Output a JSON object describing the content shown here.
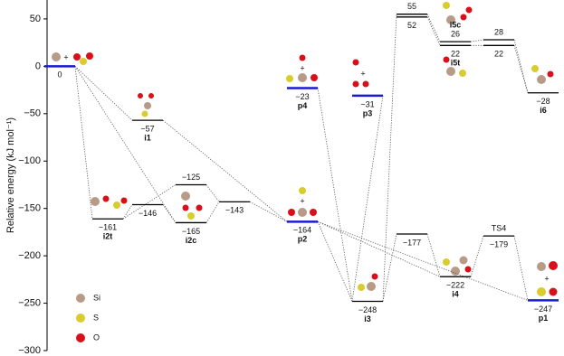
{
  "chart_data": {
    "type": "energy-levels",
    "y_label": "Relative energy (kJ mol⁻¹)",
    "ylim": [
      -300,
      69
    ],
    "yticks": [
      {
        "value": -300,
        "label": "−300"
      },
      {
        "value": -250,
        "label": "−250"
      },
      {
        "value": -200,
        "label": "−200"
      },
      {
        "value": -150,
        "label": "−150"
      },
      {
        "value": -100,
        "label": "−100"
      },
      {
        "value": -50,
        "label": "−50"
      },
      0,
      50
    ],
    "levels": [
      {
        "value": 0,
        "label": "0",
        "color": "#1a1ad6"
      },
      {
        "value": -57,
        "label": "−57",
        "name": "i1",
        "color": "#000000"
      },
      {
        "value": -161,
        "label": "−161",
        "name": "i2t",
        "color": "#000000"
      },
      {
        "value": -146,
        "label": "−146",
        "color": "#000000"
      },
      {
        "value": -125,
        "label": "−125",
        "color": "#000000"
      },
      {
        "value": -165,
        "label": "−165",
        "name": "i2c",
        "color": "#000000"
      },
      {
        "value": -143,
        "label": "−143",
        "color": "#000000"
      },
      {
        "value": -23,
        "label": "−23",
        "name": "p4",
        "color": "#1a1ad6"
      },
      {
        "value": -164,
        "label": "−164",
        "name": "p2",
        "color": "#1a1ad6"
      },
      {
        "value": -31,
        "label": "−31",
        "name": "p3",
        "color": "#1a1ad6"
      },
      {
        "value": -248,
        "label": "−248",
        "name": "i3",
        "color": "#000000"
      },
      {
        "value": -177,
        "label": "−177",
        "color": "#000000"
      },
      {
        "value": 55,
        "label": "55",
        "color": "#000000"
      },
      {
        "value": 52,
        "label": "52",
        "color": "#000000"
      },
      {
        "value": 26,
        "label": "26",
        "name": "i5c",
        "color": "#000000"
      },
      {
        "value": 22,
        "label": "22",
        "name": "i5t",
        "color": "#000000"
      },
      {
        "value": 28,
        "label": "28",
        "color": "#000000"
      },
      {
        "value": 22,
        "label": "22",
        "color": "#000000"
      },
      {
        "value": -222,
        "label": "−222",
        "name": "i4",
        "color": "#000000"
      },
      {
        "value": -179,
        "label": "−179",
        "name": "TS4",
        "color": "#000000"
      },
      {
        "value": -28,
        "label": "−28",
        "name": "i6",
        "color": "#000000"
      },
      {
        "value": -247,
        "label": "−247",
        "name": "p1",
        "color": "#1a1ad6"
      }
    ],
    "legend": [
      {
        "name": "Si",
        "color": "#b89a88"
      },
      {
        "name": "S",
        "color": "#d8cc2e"
      },
      {
        "name": "O",
        "color": "#d8101a"
      }
    ]
  }
}
